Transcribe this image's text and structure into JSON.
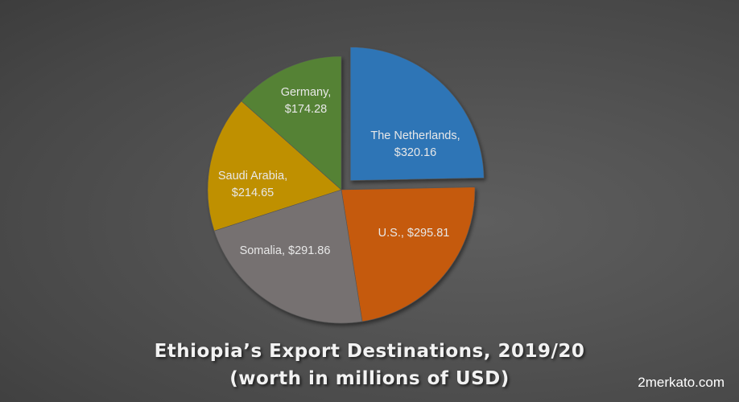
{
  "chart_data": {
    "type": "pie",
    "title": "Ethiopia’s Export Destinations, 2019/20",
    "subtitle": "(worth in millions of USD)",
    "unit": "millions of USD",
    "categories": [
      "The Netherlands",
      "U.S.",
      "Somalia",
      "Saudi Arabia",
      "Germany"
    ],
    "values": [
      320.16,
      295.81,
      291.86,
      214.65,
      174.28
    ],
    "data_labels": [
      "The Netherlands, $320.16",
      "U.S., $295.81",
      "Somalia, $291.86",
      "Saudi Arabia, $214.65",
      "Germany, $174.28"
    ],
    "colors": [
      "#2e75b6",
      "#c55a11",
      "#767171",
      "#bf9000",
      "#548235"
    ],
    "exploded": [
      "The Netherlands"
    ],
    "legend": "none",
    "start_angle_deg": 0,
    "direction": "clockwise"
  },
  "labels": {
    "netherlands": [
      "The Netherlands,",
      "$320.16"
    ],
    "us": [
      "U.S., $295.81"
    ],
    "somalia": [
      "Somalia, $291.86"
    ],
    "saudi": [
      "Saudi Arabia,",
      "$214.65"
    ],
    "germany": [
      "Germany,",
      "$174.28"
    ]
  },
  "title_line1": "Ethiopia’s Export Destinations, 2019/20",
  "title_line2": "(worth in millions of USD)",
  "watermark": "2merkato.com"
}
